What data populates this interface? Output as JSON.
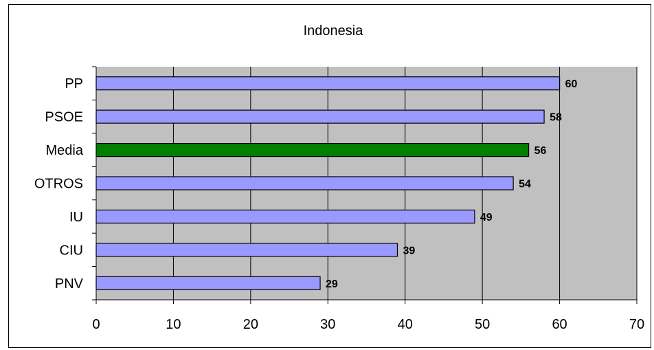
{
  "chart_data": {
    "type": "bar",
    "orientation": "horizontal",
    "title": "Indonesia",
    "categories": [
      "PP",
      "PSOE",
      "Media",
      "OTROS",
      "IU",
      "CIU",
      "PNV"
    ],
    "values": [
      60,
      58,
      56,
      54,
      49,
      39,
      29
    ],
    "data_labels": [
      "60",
      "58",
      "56",
      "54",
      "49",
      "39",
      "29"
    ],
    "highlight": "Media",
    "xlim": [
      0,
      70
    ],
    "xticks": [
      0,
      10,
      20,
      30,
      40,
      50,
      60,
      70
    ],
    "xtick_labels": [
      "0",
      "10",
      "20",
      "30",
      "40",
      "50",
      "60",
      "70"
    ],
    "xlabel": "",
    "ylabel": "",
    "grid": "vertical",
    "legend": "none",
    "colors": {
      "bar": "#9999ff",
      "highlight_bar": "#008000",
      "plot_background": "#c0c0c0",
      "gridline": "#000000",
      "bar_border": "#000000"
    }
  }
}
